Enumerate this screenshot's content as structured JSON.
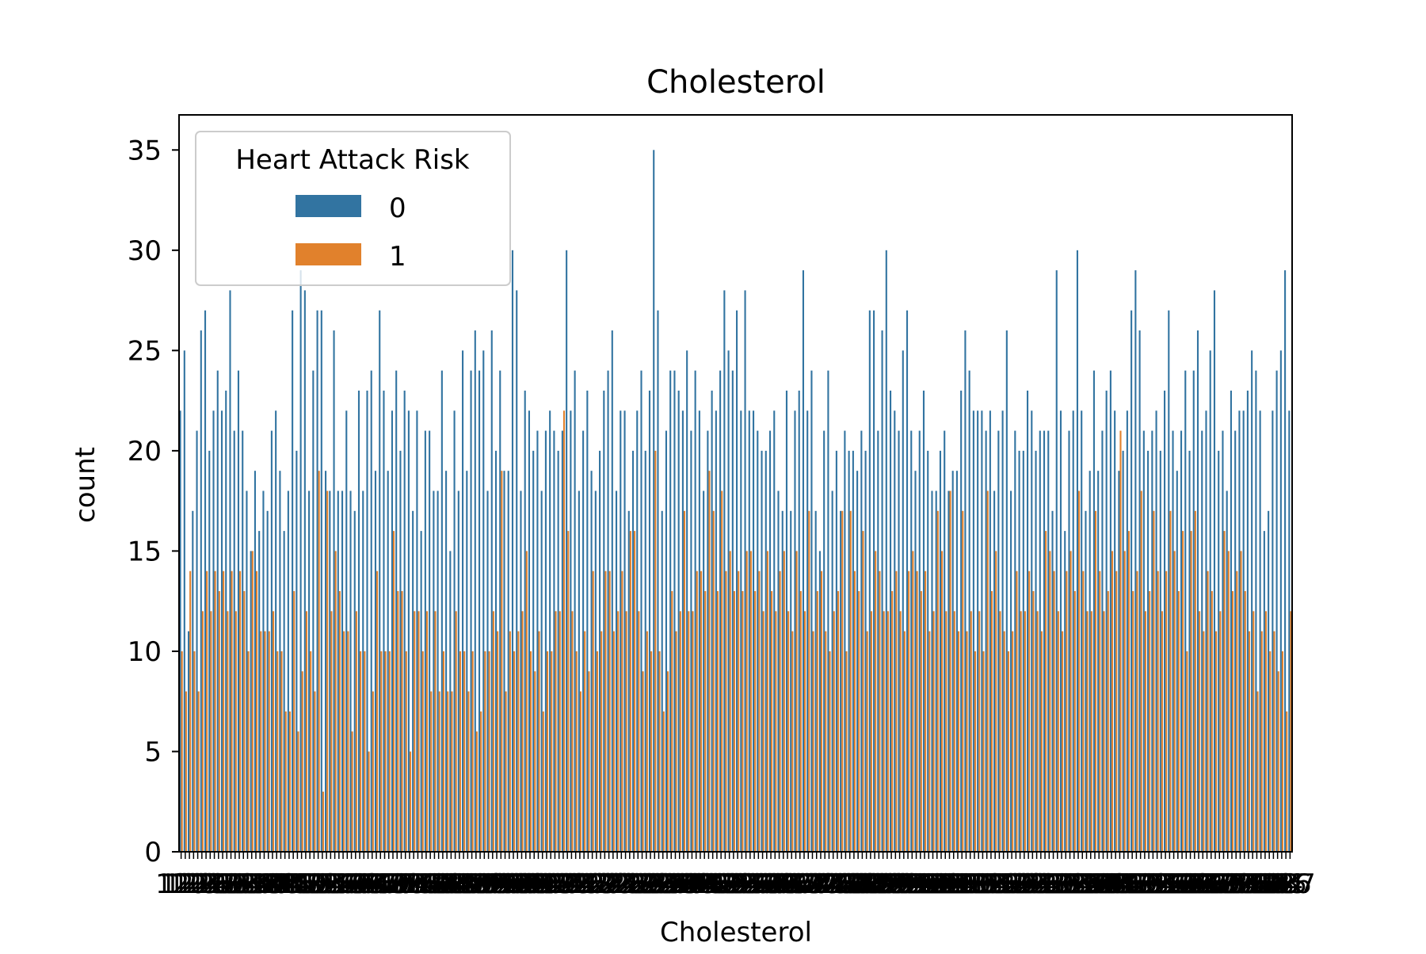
{
  "chart_data": {
    "type": "bar",
    "title": "Cholesterol",
    "xlabel": "Cholesterol",
    "ylabel": "count",
    "ylim": [
      0,
      36.75
    ],
    "yticks": [
      0,
      5,
      10,
      15,
      20,
      25,
      30,
      35
    ],
    "grid": false,
    "legend": {
      "title": "Heart Attack Risk",
      "placement": "upper left"
    },
    "categories_start": 120,
    "categories_end": 400,
    "series": [
      {
        "name": "0",
        "color": "#3274a1",
        "values": [
          22,
          25,
          11,
          17,
          21,
          26,
          27,
          20,
          22,
          24,
          22,
          23,
          28,
          21,
          24,
          21,
          18,
          15,
          19,
          16,
          18,
          17,
          21,
          22,
          19,
          16,
          18,
          27,
          20,
          29,
          28,
          18,
          24,
          27,
          27,
          19,
          18,
          26,
          18,
          18,
          22,
          18,
          17,
          23,
          18,
          23,
          24,
          19,
          27,
          23,
          19,
          22,
          24,
          20,
          23,
          22,
          17,
          22,
          16,
          21,
          21,
          18,
          18,
          24,
          19,
          15,
          22,
          18,
          25,
          19,
          24,
          26,
          24,
          25,
          18,
          26,
          20,
          24,
          19,
          19,
          30,
          28,
          18,
          23,
          22,
          20,
          21,
          18,
          21,
          22,
          21,
          20,
          21,
          30,
          22,
          24,
          18,
          21,
          23,
          19,
          18,
          20,
          23,
          24,
          26,
          18,
          22,
          22,
          17,
          20,
          22,
          24,
          20,
          23,
          35,
          27,
          17,
          21,
          24,
          24,
          23,
          22,
          25,
          21,
          24,
          22,
          18,
          21,
          23,
          22,
          24,
          28,
          25,
          24,
          27,
          22,
          28,
          22,
          22,
          21,
          20,
          20,
          21,
          22,
          18,
          17,
          23,
          17,
          22,
          23,
          29,
          22,
          24,
          17,
          15,
          21,
          24,
          18,
          20,
          17,
          21,
          20,
          20,
          19,
          21,
          20,
          27,
          27,
          21,
          26,
          30,
          23,
          22,
          21,
          25,
          27,
          21,
          19,
          21,
          23,
          20,
          18,
          18,
          20,
          21,
          18,
          19,
          19,
          23,
          26,
          24,
          22,
          22,
          22,
          21,
          22,
          18,
          21,
          22,
          26,
          18,
          21,
          20,
          20,
          23,
          22,
          20,
          21,
          21,
          21,
          17,
          29,
          22,
          16,
          21,
          22,
          30,
          22,
          17,
          19,
          24,
          19,
          21,
          23,
          24,
          22,
          19,
          20,
          22,
          27,
          29,
          26,
          21,
          20,
          21,
          22,
          20,
          23,
          27,
          21,
          19,
          21,
          24,
          20,
          24,
          26,
          21,
          22,
          25,
          28,
          20,
          21,
          18,
          23,
          21,
          22,
          22,
          23,
          25,
          24,
          22,
          16,
          17,
          22,
          24,
          25,
          29,
          22
        ]
      },
      {
        "name": "1",
        "color": "#e1812c",
        "values": [
          10,
          8,
          14,
          10,
          8,
          12,
          14,
          12,
          14,
          13,
          14,
          12,
          14,
          12,
          14,
          13,
          10,
          15,
          14,
          11,
          11,
          11,
          12,
          10,
          10,
          7,
          7,
          13,
          6,
          9,
          12,
          10,
          8,
          19,
          3,
          18,
          12,
          15,
          13,
          11,
          11,
          6,
          12,
          10,
          10,
          5,
          8,
          14,
          10,
          10,
          10,
          16,
          13,
          13,
          10,
          5,
          12,
          12,
          10,
          12,
          8,
          12,
          8,
          10,
          8,
          8,
          12,
          10,
          10,
          8,
          10,
          6,
          7,
          10,
          10,
          12,
          11,
          19,
          8,
          11,
          10,
          11,
          12,
          15,
          10,
          9,
          11,
          7,
          10,
          10,
          12,
          12,
          22,
          16,
          12,
          10,
          8,
          11,
          9,
          14,
          10,
          11,
          14,
          14,
          11,
          12,
          14,
          12,
          16,
          16,
          12,
          9,
          11,
          10,
          20,
          10,
          7,
          9,
          13,
          11,
          12,
          17,
          12,
          12,
          14,
          14,
          13,
          19,
          17,
          13,
          18,
          14,
          15,
          13,
          14,
          13,
          15,
          15,
          13,
          14,
          12,
          15,
          13,
          12,
          14,
          15,
          12,
          11,
          15,
          13,
          12,
          17,
          11,
          13,
          14,
          11,
          10,
          12,
          13,
          17,
          10,
          17,
          14,
          13,
          16,
          11,
          12,
          15,
          14,
          12,
          12,
          13,
          14,
          12,
          11,
          14,
          15,
          14,
          13,
          14,
          11,
          12,
          17,
          15,
          12,
          18,
          12,
          11,
          17,
          11,
          12,
          10,
          12,
          10,
          18,
          13,
          15,
          12,
          11,
          10,
          11,
          14,
          12,
          12,
          14,
          13,
          12,
          11,
          16,
          15,
          14,
          12,
          11,
          14,
          15,
          13,
          18,
          14,
          12,
          12,
          17,
          14,
          12,
          13,
          15,
          14,
          21,
          15,
          16,
          13,
          14,
          18,
          12,
          13,
          17,
          14,
          12,
          14,
          17,
          15,
          13,
          16,
          10,
          16,
          17,
          12,
          11,
          14,
          13,
          11,
          12,
          16,
          15,
          13,
          14,
          15,
          13,
          11,
          12,
          8,
          11,
          12,
          10,
          11,
          9,
          10,
          7,
          12
        ]
      }
    ]
  }
}
